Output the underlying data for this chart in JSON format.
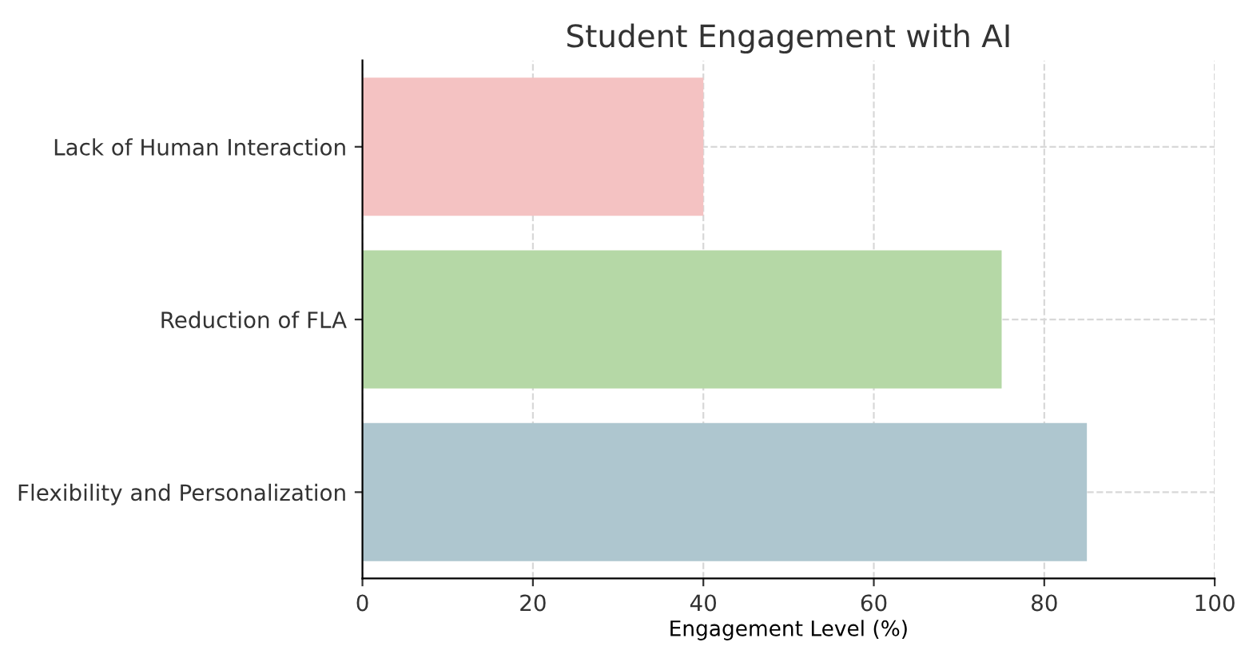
{
  "chart_data": {
    "type": "bar",
    "orientation": "horizontal",
    "title": "Student Engagement with AI",
    "xlabel": "Engagement Level (%)",
    "categories": [
      "Lack of Human Interaction",
      "Reduction of FLA",
      "Flexibility and Personalization"
    ],
    "values": [
      40,
      75,
      85
    ],
    "colors": [
      "#f4c2c2",
      "#b5d8a6",
      "#aec6cf"
    ],
    "xlim": [
      0,
      100
    ],
    "xticks": [
      0,
      20,
      40,
      60,
      80,
      100
    ],
    "grid": true
  }
}
